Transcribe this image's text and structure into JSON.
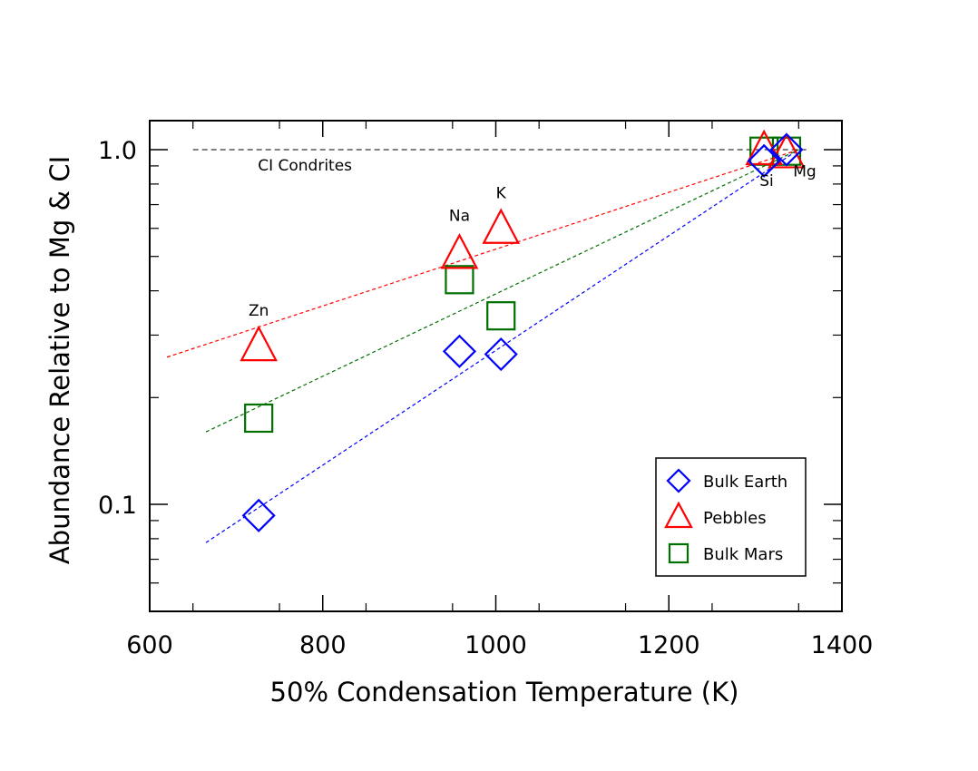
{
  "chart_data": {
    "type": "scatter",
    "title": "",
    "xlabel": "50% Condensation Temperature (K)",
    "ylabel": "Abundance Relative to Mg & CI",
    "xlim": [
      600,
      1400
    ],
    "ylim": [
      0.05,
      1.2
    ],
    "yscale": "log",
    "x_ticks": [
      600,
      800,
      1000,
      1200,
      1400
    ],
    "x_tick_labels": [
      "600",
      "800",
      "1000",
      "1200",
      "1400"
    ],
    "y_ticks": [
      0.1,
      1.0
    ],
    "y_tick_labels": [
      "0.1",
      "1.0"
    ],
    "grid": false,
    "legend_position": "bottom-right",
    "series": [
      {
        "name": "Bulk Earth",
        "marker": "diamond",
        "color": "#0000ff",
        "points": [
          {
            "element": "Zn",
            "x": 726,
            "y": 0.093
          },
          {
            "element": "Na",
            "x": 958,
            "y": 0.27
          },
          {
            "element": "K",
            "x": 1006,
            "y": 0.265
          },
          {
            "element": "Si",
            "x": 1310,
            "y": 0.93
          },
          {
            "element": "Mg",
            "x": 1336,
            "y": 1.0
          }
        ],
        "fit": {
          "x": [
            665,
            1350
          ],
          "y": [
            0.078,
            1.0
          ]
        }
      },
      {
        "name": "Pebbles",
        "marker": "triangle",
        "color": "#ff0000",
        "points": [
          {
            "element": "Zn",
            "x": 726,
            "y": 0.28
          },
          {
            "element": "Na",
            "x": 958,
            "y": 0.51
          },
          {
            "element": "K",
            "x": 1006,
            "y": 0.6
          },
          {
            "element": "Si",
            "x": 1310,
            "y": 1.0
          },
          {
            "element": "Mg",
            "x": 1336,
            "y": 0.98
          }
        ],
        "fit": {
          "x": [
            620,
            1350
          ],
          "y": [
            0.26,
            1.0
          ]
        }
      },
      {
        "name": "Bulk Mars",
        "marker": "square",
        "color": "#007000",
        "points": [
          {
            "element": "Zn",
            "x": 726,
            "y": 0.175
          },
          {
            "element": "Na",
            "x": 958,
            "y": 0.43
          },
          {
            "element": "K",
            "x": 1006,
            "y": 0.34
          },
          {
            "element": "Si",
            "x": 1310,
            "y": 0.99
          },
          {
            "element": "Mg",
            "x": 1336,
            "y": 0.99
          }
        ],
        "fit": {
          "x": [
            665,
            1350
          ],
          "y": [
            0.16,
            1.0
          ]
        }
      }
    ],
    "reference_line": {
      "label": "CI Condrites",
      "y": 1.0,
      "x": [
        650,
        1360
      ],
      "color": "#000000"
    },
    "annotations": [
      {
        "text": "Zn",
        "x": 726,
        "y": 0.34
      },
      {
        "text": "Na",
        "x": 958,
        "y": 0.63
      },
      {
        "text": "K",
        "x": 1006,
        "y": 0.73
      },
      {
        "text": "Si",
        "x": 1313,
        "y": 0.79
      },
      {
        "text": "Mg",
        "x": 1357,
        "y": 0.84
      }
    ]
  }
}
